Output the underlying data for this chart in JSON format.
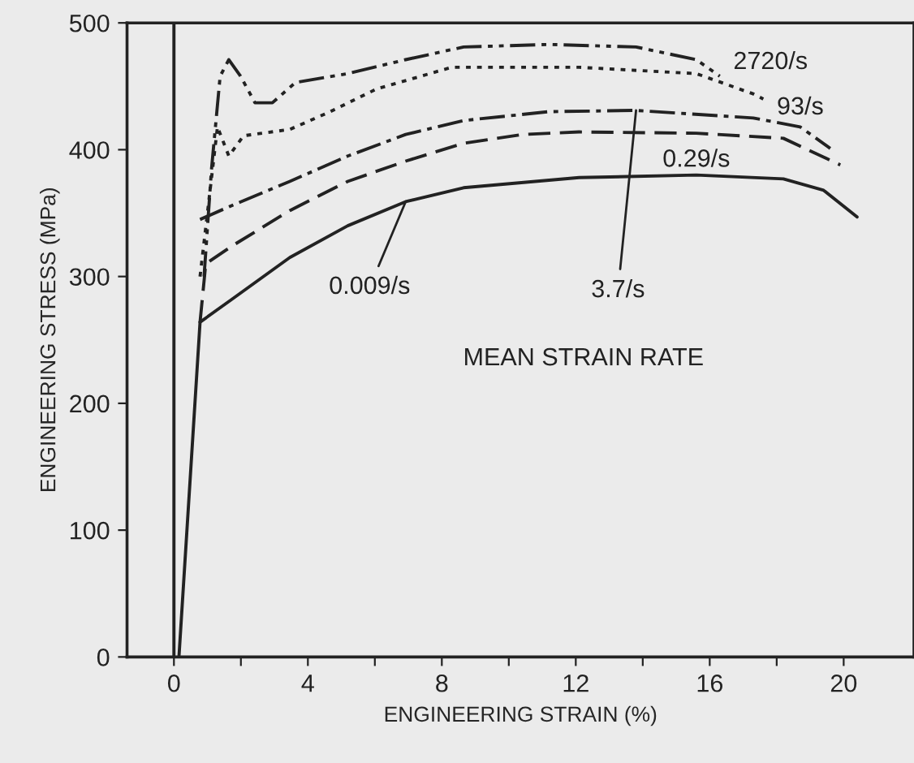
{
  "chart_data": {
    "type": "line",
    "xlabel": "ENGINEERING STRAIN (%)",
    "ylabel": "ENGINEERING STRESS (MPa)",
    "xlim": [
      -1.4,
      22.1
    ],
    "ylim": [
      0,
      500
    ],
    "xticks": [
      0,
      {
        "value": 2,
        "label": null
      },
      4,
      {
        "value": 6,
        "label": null
      },
      8,
      {
        "value": 10,
        "label": null
      },
      12,
      {
        "value": 14,
        "label": null
      },
      16,
      {
        "value": 18,
        "label": null
      },
      20
    ],
    "yticks": [
      0,
      100,
      200,
      300,
      400,
      500
    ],
    "grid": false,
    "legend": false,
    "ref_lines": [
      {
        "axis": "x",
        "value": 0,
        "color": "#222222"
      }
    ],
    "annotations": [
      "MEAN STRAIN RATE"
    ],
    "series": [
      {
        "color": "#222222",
        "line_style": "solid",
        "x": [
          0.15,
          0.78
        ],
        "values": [
          0,
          264
        ]
      },
      {
        "name": "0.009/s",
        "color": "#222222",
        "line_style": "solid",
        "x": [
          0.78,
          1.73,
          3.46,
          5.19,
          6.92,
          8.65,
          12.1,
          15.6,
          18.2,
          19.4,
          20.4
        ],
        "values": [
          264,
          282,
          315,
          340,
          359,
          370,
          378,
          380,
          377,
          368,
          347
        ]
      },
      {
        "name": "0.29/s",
        "color": "#222222",
        "line_style": "dashed",
        "x": [
          0.78,
          0.95,
          1.73,
          3.46,
          5.19,
          6.92,
          8.65,
          10.4,
          12.1,
          15.6,
          18.2,
          19.9
        ],
        "values": [
          264,
          310,
          324,
          352,
          375,
          391,
          405,
          412,
          414,
          413,
          409,
          388
        ]
      },
      {
        "name": "3.7/s",
        "color": "#222222",
        "line_style": "dashdot",
        "x": [
          0.78,
          1.73,
          3.46,
          5.19,
          6.92,
          8.65,
          11.2,
          13.8,
          17.3,
          18.7,
          19.6
        ],
        "values": [
          345,
          356,
          375,
          395,
          412,
          423,
          430,
          431,
          425,
          418,
          401
        ]
      },
      {
        "name": "93/s",
        "color": "#222222",
        "line_style": "dotted",
        "x": [
          0.78,
          1.3,
          1.64,
          2.08,
          3.46,
          4.67,
          6.06,
          8.3,
          12.1,
          15.6,
          17.3,
          17.6
        ],
        "values": [
          300,
          418,
          395,
          411,
          416,
          430,
          448,
          465,
          465,
          460,
          444,
          440
        ]
      },
      {
        "name": "2720/s",
        "color": "#222222",
        "line_style": "dashdotdot",
        "x": [
          0.9,
          1.12,
          1.38,
          1.64,
          1.99,
          2.42,
          2.94,
          3.63,
          5.19,
          6.92,
          8.65,
          11.2,
          13.8,
          15.6,
          16.3
        ],
        "values": [
          300,
          384,
          458,
          471,
          458,
          437,
          437,
          453,
          460,
          471,
          481,
          483,
          481,
          471,
          458
        ]
      }
    ]
  }
}
